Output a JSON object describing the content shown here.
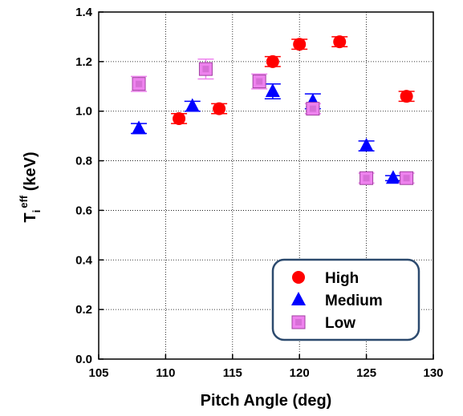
{
  "chart_data": {
    "type": "scatter",
    "xlabel": "Pitch Angle (deg)",
    "ylabel": {
      "main": "T",
      "sub": "i",
      "sup": "eff",
      "unit": " (keV)"
    },
    "xlim": [
      105,
      130
    ],
    "ylim": [
      0.0,
      1.4
    ],
    "xticks": [
      "105",
      "110",
      "115",
      "120",
      "125",
      "130"
    ],
    "yticks": [
      "0.0",
      "0.2",
      "0.4",
      "0.6",
      "0.8",
      "1.0",
      "1.2",
      "1.4"
    ],
    "grid": true,
    "legend_position": "bottom-right",
    "series": [
      {
        "name": "High",
        "marker": "circle",
        "color": "#ff0000",
        "points": [
          {
            "x": 111,
            "y": 0.97,
            "err": 0.02
          },
          {
            "x": 114,
            "y": 1.01,
            "err": 0.02
          },
          {
            "x": 118,
            "y": 1.2,
            "err": 0.02
          },
          {
            "x": 120,
            "y": 1.27,
            "err": 0.02
          },
          {
            "x": 123,
            "y": 1.28,
            "err": 0.02
          },
          {
            "x": 128,
            "y": 1.06,
            "err": 0.02
          }
        ]
      },
      {
        "name": "Medium",
        "marker": "triangle",
        "color": "#0000ff",
        "points": [
          {
            "x": 108,
            "y": 0.93,
            "err": 0.02
          },
          {
            "x": 112,
            "y": 1.02,
            "err": 0.02
          },
          {
            "x": 118,
            "y": 1.08,
            "err": 0.03
          },
          {
            "x": 121,
            "y": 1.04,
            "err": 0.03
          },
          {
            "x": 125,
            "y": 0.86,
            "err": 0.02
          },
          {
            "x": 127,
            "y": 0.73,
            "err": 0.01
          }
        ]
      },
      {
        "name": "Low",
        "marker": "square",
        "color": "#ee82ee",
        "points": [
          {
            "x": 108,
            "y": 1.11,
            "err": 0.03
          },
          {
            "x": 113,
            "y": 1.17,
            "err": 0.04
          },
          {
            "x": 117,
            "y": 1.12,
            "err": 0.03
          },
          {
            "x": 121,
            "y": 1.01,
            "err": 0.02
          },
          {
            "x": 125,
            "y": 0.73,
            "err": 0.02
          },
          {
            "x": 128,
            "y": 0.73,
            "err": 0.02
          }
        ]
      }
    ]
  }
}
